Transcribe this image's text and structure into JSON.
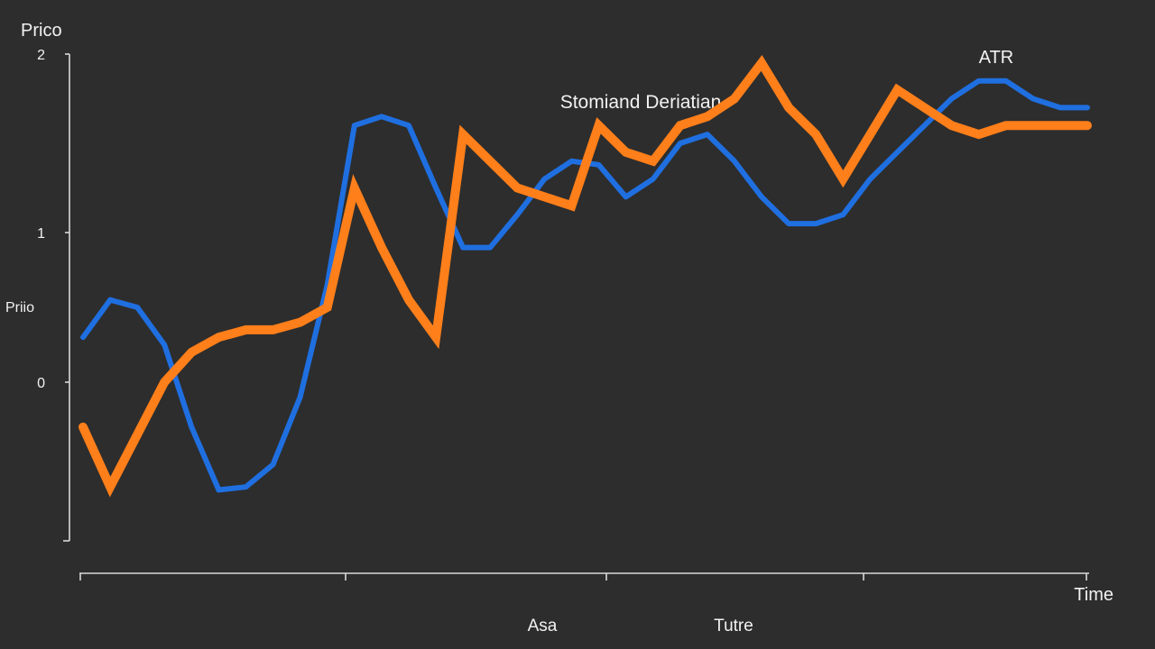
{
  "chart_data": {
    "type": "line",
    "title": "Stomiand Deriatian",
    "ylabel": "Prico",
    "ylabel_side": "Priio",
    "xlabel": "Time",
    "footer_labels": [
      "Asa",
      "Tutre"
    ],
    "y_ticks": [
      "2",
      "1",
      "0"
    ],
    "y_tick_values": [
      2,
      1,
      0
    ],
    "ylim": [
      -1.05,
      2.2
    ],
    "x": [
      0,
      1,
      2,
      3,
      4,
      5,
      6,
      7,
      8,
      9,
      10,
      11,
      12,
      13,
      14,
      15,
      16,
      17,
      18,
      19,
      20,
      21,
      22,
      23,
      24,
      25,
      26,
      27,
      28,
      29,
      30,
      31,
      32,
      33,
      34,
      35,
      36,
      37
    ],
    "xlim": [
      0,
      37
    ],
    "grid": false,
    "series": [
      {
        "name": "",
        "color": "#1f6fe0",
        "values": [
          0.3,
          0.55,
          0.5,
          0.25,
          -0.3,
          -0.72,
          -0.7,
          -0.55,
          -0.1,
          0.65,
          1.6,
          1.65,
          1.6,
          1.25,
          0.9,
          0.9,
          1.1,
          1.3,
          1.4,
          1.38,
          1.2,
          1.3,
          1.5,
          1.55,
          1.4,
          1.2,
          1.05,
          1.05,
          1.1,
          1.3,
          1.45,
          1.6,
          1.75,
          1.85,
          1.85,
          1.75,
          1.7,
          1.7
        ]
      },
      {
        "name": "ATR",
        "color": "#ff7f1a",
        "values": [
          -0.3,
          -0.7,
          -0.35,
          0.0,
          0.2,
          0.3,
          0.35,
          0.35,
          0.4,
          0.5,
          1.25,
          0.9,
          0.55,
          0.3,
          1.55,
          1.4,
          1.25,
          1.2,
          1.15,
          1.6,
          1.45,
          1.4,
          1.6,
          1.65,
          1.75,
          1.95,
          1.7,
          1.55,
          1.3,
          1.55,
          1.8,
          1.7,
          1.6,
          1.55,
          1.6,
          1.6,
          1.6,
          1.6
        ]
      }
    ]
  }
}
